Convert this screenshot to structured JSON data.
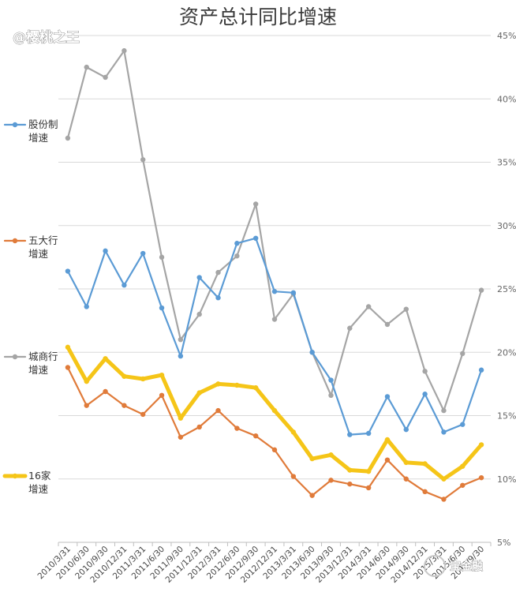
{
  "watermark_top": "@樱桃之王",
  "watermark_bottom": "宝金融",
  "chart_data": {
    "type": "line",
    "title": "资产总计同比增速",
    "categories": [
      "2010/3/31",
      "2010/6/30",
      "2010/9/30",
      "2010/12/31",
      "2011/3/31",
      "2011/6/30",
      "2011/9/30",
      "2011/12/31",
      "2012/3/31",
      "2012/6/30",
      "2012/9/30",
      "2012/12/31",
      "2013/3/31",
      "2013/6/30",
      "2013/9/30",
      "2013/12/31",
      "2014/3/31",
      "2014/6/30",
      "2014/9/30",
      "2014/12/31",
      "2015/3/31",
      "2015/6/30",
      "2015/9/30"
    ],
    "xtick_labels": [
      "2010/3/31",
      "2010/6/30",
      "2010/9/30",
      "2010/12/31",
      "2011/3/31",
      "2011/6/30",
      "2011/9/30",
      "2011/12/31",
      "2012/3/31",
      "2012/6/30",
      "2012/9/30",
      "2012/12/31",
      "2013/3/31",
      "2013/6/30",
      "2013/9/30",
      "2013/12/31",
      "2014/3/31",
      "2014/6/30",
      "2014/9/30",
      "2014/12/31",
      "2015/3/31",
      "2015/6/30",
      "2015/9/30"
    ],
    "ylim": [
      5,
      45
    ],
    "yticks": [
      5,
      10,
      15,
      20,
      25,
      30,
      35,
      40,
      45
    ],
    "ytick_labels": [
      "5%",
      "10%",
      "15%",
      "20%",
      "25%",
      "30%",
      "35%",
      "40%",
      "45%"
    ],
    "grid": true,
    "series": [
      {
        "name": "城商行增速",
        "label_lines": [
          "城商行",
          "增速"
        ],
        "color": "#a5a5a5",
        "values": [
          36.9,
          42.5,
          41.7,
          43.8,
          35.2,
          27.5,
          21.0,
          23.0,
          26.3,
          27.6,
          31.7,
          22.6,
          24.6,
          20.0,
          16.6,
          21.9,
          23.6,
          22.2,
          23.4,
          18.5,
          15.4,
          19.9,
          24.9
        ]
      },
      {
        "name": "股份制增速",
        "label_lines": [
          "股份制",
          "增速"
        ],
        "color": "#5b9bd5",
        "values": [
          26.4,
          23.6,
          28.0,
          25.3,
          27.8,
          23.5,
          19.7,
          25.9,
          24.3,
          28.6,
          29.0,
          24.8,
          24.7,
          20.0,
          17.8,
          13.5,
          13.6,
          16.5,
          13.9,
          16.7,
          13.7,
          14.3,
          18.6
        ]
      },
      {
        "name": "16家增速",
        "label_lines": [
          "16家",
          "增速"
        ],
        "color": "#f5c518",
        "values": [
          20.4,
          17.7,
          19.5,
          18.1,
          17.9,
          18.2,
          14.8,
          16.8,
          17.5,
          17.4,
          17.2,
          15.4,
          13.7,
          11.6,
          11.9,
          10.7,
          10.6,
          13.1,
          11.3,
          11.2,
          10.0,
          11.0,
          12.7
        ]
      },
      {
        "name": "五大行增速",
        "label_lines": [
          "五大行",
          "增速"
        ],
        "color": "#e07b3a",
        "values": [
          18.8,
          15.8,
          16.9,
          15.8,
          15.1,
          16.6,
          13.3,
          14.1,
          15.4,
          14.0,
          13.4,
          12.3,
          10.2,
          8.7,
          9.9,
          9.6,
          9.3,
          11.5,
          10.0,
          9.0,
          8.4,
          9.5,
          10.1
        ]
      }
    ]
  }
}
